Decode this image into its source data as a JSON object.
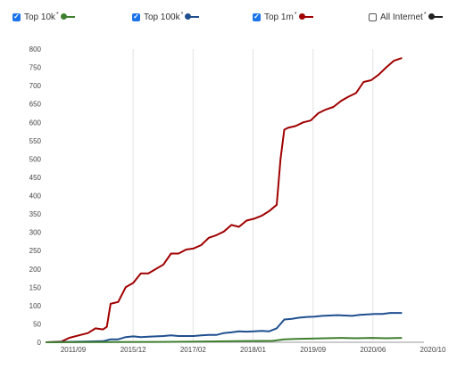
{
  "legend": [
    {
      "label": "Top 10k",
      "star": "*",
      "checked": true,
      "color": "#3f7f2f"
    },
    {
      "label": "Top 100k",
      "star": "*",
      "checked": true,
      "color": "#1f4f8f"
    },
    {
      "label": "Top 1m",
      "star": "*",
      "checked": true,
      "color": "#a00000"
    },
    {
      "label": "All Internet",
      "star": "*",
      "checked": false,
      "color": "#222222"
    }
  ],
  "chart_data": {
    "type": "line",
    "title": "",
    "xlabel": "",
    "ylabel": "",
    "ylim": [
      0,
      800
    ],
    "yticks": [
      0,
      50,
      100,
      150,
      200,
      250,
      300,
      350,
      400,
      450,
      500,
      550,
      600,
      650,
      700,
      750,
      800
    ],
    "xticks": [
      "2011/09",
      "2015/12",
      "2017/02",
      "2018/01",
      "2019/09",
      "2020/06",
      "2020/10"
    ],
    "grid": "vertical",
    "series": [
      {
        "name": "Top 1m",
        "color": "#a00000",
        "points": [
          [
            0,
            0
          ],
          [
            0.04,
            2
          ],
          [
            0.06,
            12
          ],
          [
            0.09,
            20
          ],
          [
            0.11,
            25
          ],
          [
            0.13,
            38
          ],
          [
            0.15,
            35
          ],
          [
            0.16,
            42
          ],
          [
            0.17,
            105
          ],
          [
            0.19,
            110
          ],
          [
            0.21,
            150
          ],
          [
            0.23,
            162
          ],
          [
            0.25,
            188
          ],
          [
            0.27,
            188
          ],
          [
            0.29,
            200
          ],
          [
            0.31,
            212
          ],
          [
            0.33,
            242
          ],
          [
            0.35,
            242
          ],
          [
            0.37,
            253
          ],
          [
            0.39,
            256
          ],
          [
            0.41,
            265
          ],
          [
            0.43,
            285
          ],
          [
            0.45,
            292
          ],
          [
            0.47,
            302
          ],
          [
            0.49,
            320
          ],
          [
            0.51,
            315
          ],
          [
            0.53,
            332
          ],
          [
            0.55,
            337
          ],
          [
            0.57,
            345
          ],
          [
            0.59,
            358
          ],
          [
            0.61,
            375
          ],
          [
            0.62,
            500
          ],
          [
            0.63,
            580
          ],
          [
            0.64,
            585
          ],
          [
            0.66,
            590
          ],
          [
            0.68,
            600
          ],
          [
            0.7,
            605
          ],
          [
            0.72,
            625
          ],
          [
            0.74,
            635
          ],
          [
            0.76,
            642
          ],
          [
            0.78,
            658
          ],
          [
            0.8,
            670
          ],
          [
            0.82,
            680
          ],
          [
            0.84,
            710
          ],
          [
            0.86,
            715
          ],
          [
            0.88,
            730
          ],
          [
            0.9,
            750
          ],
          [
            0.92,
            768
          ],
          [
            0.94,
            775
          ]
        ]
      },
      {
        "name": "Top 100k",
        "color": "#1f4f8f",
        "points": [
          [
            0,
            0
          ],
          [
            0.1,
            2
          ],
          [
            0.15,
            3
          ],
          [
            0.17,
            8
          ],
          [
            0.19,
            8
          ],
          [
            0.21,
            14
          ],
          [
            0.23,
            16
          ],
          [
            0.25,
            14
          ],
          [
            0.27,
            15
          ],
          [
            0.29,
            16
          ],
          [
            0.31,
            17
          ],
          [
            0.33,
            19
          ],
          [
            0.35,
            17
          ],
          [
            0.37,
            17
          ],
          [
            0.39,
            17
          ],
          [
            0.41,
            19
          ],
          [
            0.43,
            20
          ],
          [
            0.45,
            20
          ],
          [
            0.47,
            25
          ],
          [
            0.49,
            27
          ],
          [
            0.51,
            30
          ],
          [
            0.53,
            29
          ],
          [
            0.55,
            30
          ],
          [
            0.57,
            31
          ],
          [
            0.59,
            30
          ],
          [
            0.61,
            38
          ],
          [
            0.62,
            50
          ],
          [
            0.63,
            62
          ],
          [
            0.65,
            64
          ],
          [
            0.67,
            67
          ],
          [
            0.69,
            69
          ],
          [
            0.71,
            70
          ],
          [
            0.73,
            72
          ],
          [
            0.75,
            73
          ],
          [
            0.77,
            74
          ],
          [
            0.79,
            73
          ],
          [
            0.81,
            72
          ],
          [
            0.83,
            75
          ],
          [
            0.85,
            76
          ],
          [
            0.87,
            77
          ],
          [
            0.89,
            77
          ],
          [
            0.91,
            80
          ],
          [
            0.94,
            80
          ]
        ]
      },
      {
        "name": "Top 10k",
        "color": "#3f7f2f",
        "points": [
          [
            0,
            0
          ],
          [
            0.3,
            1
          ],
          [
            0.4,
            2
          ],
          [
            0.5,
            3
          ],
          [
            0.6,
            4
          ],
          [
            0.63,
            8
          ],
          [
            0.66,
            9
          ],
          [
            0.7,
            10
          ],
          [
            0.74,
            11
          ],
          [
            0.78,
            12
          ],
          [
            0.82,
            11
          ],
          [
            0.86,
            12
          ],
          [
            0.9,
            11
          ],
          [
            0.94,
            12
          ]
        ]
      }
    ]
  }
}
